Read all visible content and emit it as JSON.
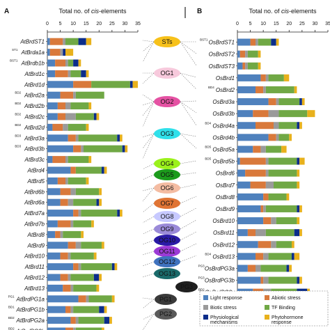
{
  "chart_data": {
    "type": "bar",
    "stacked": true,
    "orientation": "horizontal",
    "categories_legend": [
      {
        "name": "Light response",
        "color": "#4f81bd"
      },
      {
        "name": "Abiotic stress",
        "color": "#d9793b"
      },
      {
        "name": "Biotic stress",
        "color": "#9a9a9a"
      },
      {
        "name": "TF Binding",
        "color": "#70a845"
      },
      {
        "name": "Physiological mechanisms",
        "color": "#0b2d8a"
      },
      {
        "name": "Phytohormone response",
        "color": "#e8b11c"
      }
    ],
    "panels": [
      {
        "label": "A",
        "title": "Total no. of cis-elements",
        "title_parts": [
          "Total no. of ",
          "cis",
          "-elements"
        ],
        "xlim": [
          0,
          35
        ],
        "ticks": [
          0,
          5,
          10,
          15,
          20,
          25,
          30,
          35
        ],
        "rows": [
          {
            "name": "AtBrdST1",
            "sup": "",
            "values": [
              1,
              5,
              1,
              5,
              3,
              2
            ]
          },
          {
            "name": "AtBrda1a",
            "sup": "ST1",
            "values": [
              1,
              4,
              1,
              0,
              1,
              3
            ]
          },
          {
            "name": "AtBrdb1b",
            "sup": "BST1",
            "values": [
              3,
              4,
              1,
              2,
              2,
              1
            ]
          },
          {
            "name": "AtBrd1c",
            "sup": "",
            "values": [
              3,
              5,
              1,
              4,
              2,
              1
            ]
          },
          {
            "name": "AtBrd1d",
            "sup": "",
            "values": [
              10,
              7,
              0,
              15,
              1,
              2
            ]
          },
          {
            "name": "AtBrd2a",
            "sup": "BD2",
            "values": [
              5,
              5,
              1,
              11,
              0,
              0
            ]
          },
          {
            "name": "AtBrd2b",
            "sup": "BD2",
            "values": [
              4,
              3,
              2,
              7,
              0,
              1
            ]
          },
          {
            "name": "AtBrd2c",
            "sup": "BD2",
            "values": [
              4,
              3,
              4,
              7,
              1,
              1
            ]
          },
          {
            "name": "AtBrd2d",
            "sup": "BD2",
            "values": [
              2,
              4,
              2,
              7,
              0,
              1
            ]
          },
          {
            "name": "AtBrd3a",
            "sup": "BD3",
            "values": [
              8,
              3,
              1,
              15,
              1,
              1
            ]
          },
          {
            "name": "AtBrd3b",
            "sup": "BD3",
            "values": [
              10,
              3,
              1,
              15,
              1,
              1
            ]
          },
          {
            "name": "AtBrd3c",
            "sup": "",
            "values": [
              2,
              5,
              1,
              8,
              0,
              1
            ]
          },
          {
            "name": "AtBrd4",
            "sup": "",
            "values": [
              9,
              2,
              0,
              10,
              1,
              1
            ]
          },
          {
            "name": "AtBrd5",
            "sup": "",
            "values": [
              4,
              3,
              1,
              7,
              0,
              1
            ]
          },
          {
            "name": "AtBrd6b",
            "sup": "",
            "values": [
              5,
              4,
              2,
              9,
              0,
              1
            ]
          },
          {
            "name": "AtBrd6a",
            "sup": "",
            "values": [
              5,
              3,
              2,
              9,
              1,
              1
            ]
          },
          {
            "name": "AtBrd7a",
            "sup": "",
            "values": [
              10,
              2,
              1,
              14,
              1,
              1
            ]
          },
          {
            "name": "AtBrd7b",
            "sup": "",
            "values": [
              4,
              5,
              1,
              7,
              0,
              1
            ]
          },
          {
            "name": "AtBrd8",
            "sup": "",
            "values": [
              3,
              2,
              1,
              7,
              0,
              1
            ]
          },
          {
            "name": "AtBrd9",
            "sup": "",
            "values": [
              8,
              3,
              2,
              8,
              0,
              1
            ]
          },
          {
            "name": "AtBrd10",
            "sup": "",
            "values": [
              5,
              3,
              1,
              9,
              0,
              1
            ]
          },
          {
            "name": "AtBrd11",
            "sup": "",
            "values": [
              10,
              2,
              1,
              12,
              1,
              1
            ]
          },
          {
            "name": "AtBrd12",
            "sup": "",
            "values": [
              5,
              3,
              1,
              9,
              2,
              1
            ]
          },
          {
            "name": "AtBrd13",
            "sup": "",
            "values": [
              6,
              3,
              1,
              9,
              0,
              1
            ]
          },
          {
            "name": "AtBrdPG1a",
            "sup": "PG1",
            "values": [
              12,
              3,
              1,
              9,
              0,
              1
            ]
          },
          {
            "name": "AtBrdPG1b",
            "sup": "BD1",
            "values": [
              7,
              2,
              1,
              10,
              2,
              1
            ]
          },
          {
            "name": "AtBrdPG2a",
            "sup": "BD2",
            "values": [
              9,
              2,
              1,
              10,
              2,
              1
            ]
          },
          {
            "name": "AtBrdPG2b",
            "sup": "BD2",
            "values": [
              7,
              3,
              1,
              10,
              0,
              1
            ]
          }
        ]
      },
      {
        "label": "B",
        "title": "Total no. of cis-elements",
        "title_parts": [
          "Total no. of ",
          "cis",
          "-elements"
        ],
        "xlim": [
          0,
          35
        ],
        "ticks": [
          0,
          5,
          10,
          15,
          20,
          25,
          30,
          35
        ],
        "rows": [
          {
            "name": "OsBrdST1",
            "sup": "BST1",
            "values": [
              5,
              2,
              1,
              5,
              2,
              1
            ]
          },
          {
            "name": "OsBrdST2",
            "sup": "",
            "values": [
              1,
              2,
              1,
              4,
              0,
              1
            ]
          },
          {
            "name": "OsBrdST3",
            "sup": "",
            "values": [
              2,
              1,
              1,
              4,
              0,
              1
            ]
          },
          {
            "name": "OsBrd1",
            "sup": "",
            "values": [
              9,
              2,
              1,
              6,
              0,
              2
            ]
          },
          {
            "name": "OsBrd2",
            "sup": "BD4",
            "values": [
              7,
              3,
              1,
              11,
              0,
              1
            ]
          },
          {
            "name": "OsBrd3a",
            "sup": "",
            "values": [
              12,
              3,
              1,
              8,
              1,
              1
            ]
          },
          {
            "name": "OsBrd3b",
            "sup": "",
            "values": [
              6,
              6,
              4,
              11,
              0,
              3
            ]
          },
          {
            "name": "OsBrd4a",
            "sup": "BD4",
            "values": [
              7,
              7,
              2,
              7,
              1,
              1
            ]
          },
          {
            "name": "OsBrd4b",
            "sup": "",
            "values": [
              12,
              3,
              1,
              4,
              0,
              1
            ]
          },
          {
            "name": "OsBrd5a",
            "sup": "BD5",
            "values": [
              6,
              3,
              2,
              6,
              0,
              2
            ]
          },
          {
            "name": "OsBrd5b",
            "sup": "BD5",
            "values": [
              1,
              10,
              1,
              11,
              1,
              2
            ]
          },
          {
            "name": "OsBrd6",
            "sup": "",
            "values": [
              3,
              8,
              1,
              11,
              0,
              1
            ]
          },
          {
            "name": "OsBrd7",
            "sup": "",
            "values": [
              5,
              6,
              3,
              9,
              0,
              1
            ]
          },
          {
            "name": "OsBrd8",
            "sup": "",
            "values": [
              10,
              2,
              0,
              7,
              0,
              1
            ]
          },
          {
            "name": "OsBrd9",
            "sup": "",
            "values": [
              9,
              1,
              1,
              12,
              1,
              1
            ]
          },
          {
            "name": "OsBrd10",
            "sup": "",
            "values": [
              10,
              3,
              2,
              8,
              0,
              1
            ]
          },
          {
            "name": "OsBrd11",
            "sup": "",
            "values": [
              4,
              3,
              4,
              11,
              2,
              1
            ]
          },
          {
            "name": "OsBrd12",
            "sup": "",
            "values": [
              8,
              5,
              2,
              6,
              0,
              1
            ]
          },
          {
            "name": "OsBrd13",
            "sup": "BD4",
            "values": [
              7,
              3,
              2,
              9,
              1,
              2
            ]
          },
          {
            "name": "OsBrdPG3a",
            "sup": "PG3",
            "values": [
              4,
              3,
              2,
              10,
              1,
              1
            ]
          },
          {
            "name": "OsBrdPG3b",
            "sup": "PG3",
            "values": [
              9,
              1,
              2,
              11,
              1,
              1
            ]
          },
          {
            "name": "OsBrdPG3c",
            "sup": "BD2",
            "values": [
              6,
              4,
              3,
              10,
              4,
              1
            ]
          }
        ]
      }
    ],
    "groups": [
      {
        "name": "STs",
        "color": "#f7c11a"
      },
      {
        "name": "OG1",
        "color": "#f7c9dc"
      },
      {
        "name": "OG2",
        "color": "#e552a3"
      },
      {
        "name": "OG3",
        "color": "#2fe0ea"
      },
      {
        "name": "OG4",
        "color": "#9bf11b"
      },
      {
        "name": "OG5",
        "color": "#1c9b1c"
      },
      {
        "name": "OG6",
        "color": "#f4bca2"
      },
      {
        "name": "OG7",
        "color": "#e07434"
      },
      {
        "name": "OG8",
        "color": "#c7c9ff"
      },
      {
        "name": "OG9",
        "color": "#9a8ad8"
      },
      {
        "name": "OG10",
        "color": "#2a1aa6"
      },
      {
        "name": "OG11",
        "color": "#9c3ad6"
      },
      {
        "name": "OG12",
        "color": "#3f72be"
      },
      {
        "name": "OG13",
        "color": "#1a6a6a"
      },
      {
        "name": "PG3",
        "color": "#1f1f1f"
      },
      {
        "name": "PG1",
        "color": "#3a3a3a"
      },
      {
        "name": "PG2",
        "color": "#5a5a5a"
      }
    ]
  }
}
